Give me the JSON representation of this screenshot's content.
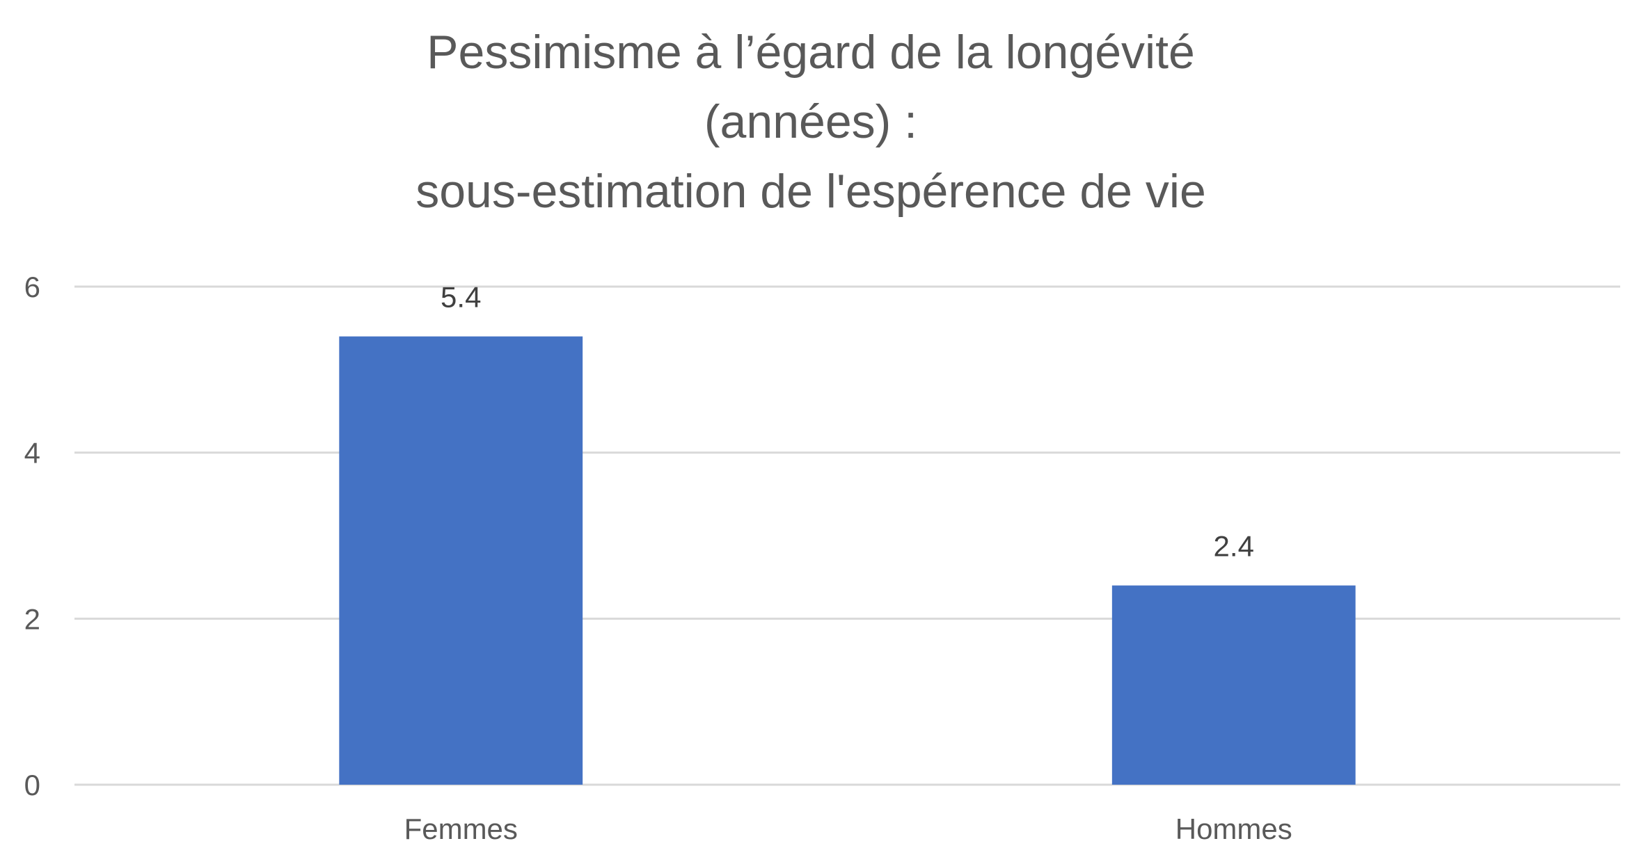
{
  "chart_data": {
    "type": "bar",
    "title": [
      "Pessimisme à l’égard de la longévité",
      "(années) :",
      "sous-estimation de l'espérence de vie"
    ],
    "categories": [
      "Femmes",
      "Hommes"
    ],
    "values": [
      5.4,
      2.4
    ],
    "data_labels": [
      "5.4",
      "2.4"
    ],
    "ylim": [
      0,
      6
    ],
    "yticks": [
      0,
      2,
      4,
      6
    ],
    "xlabel": "",
    "ylabel": "",
    "grid": true,
    "legend": "none",
    "bar_color": "#4472C4"
  }
}
